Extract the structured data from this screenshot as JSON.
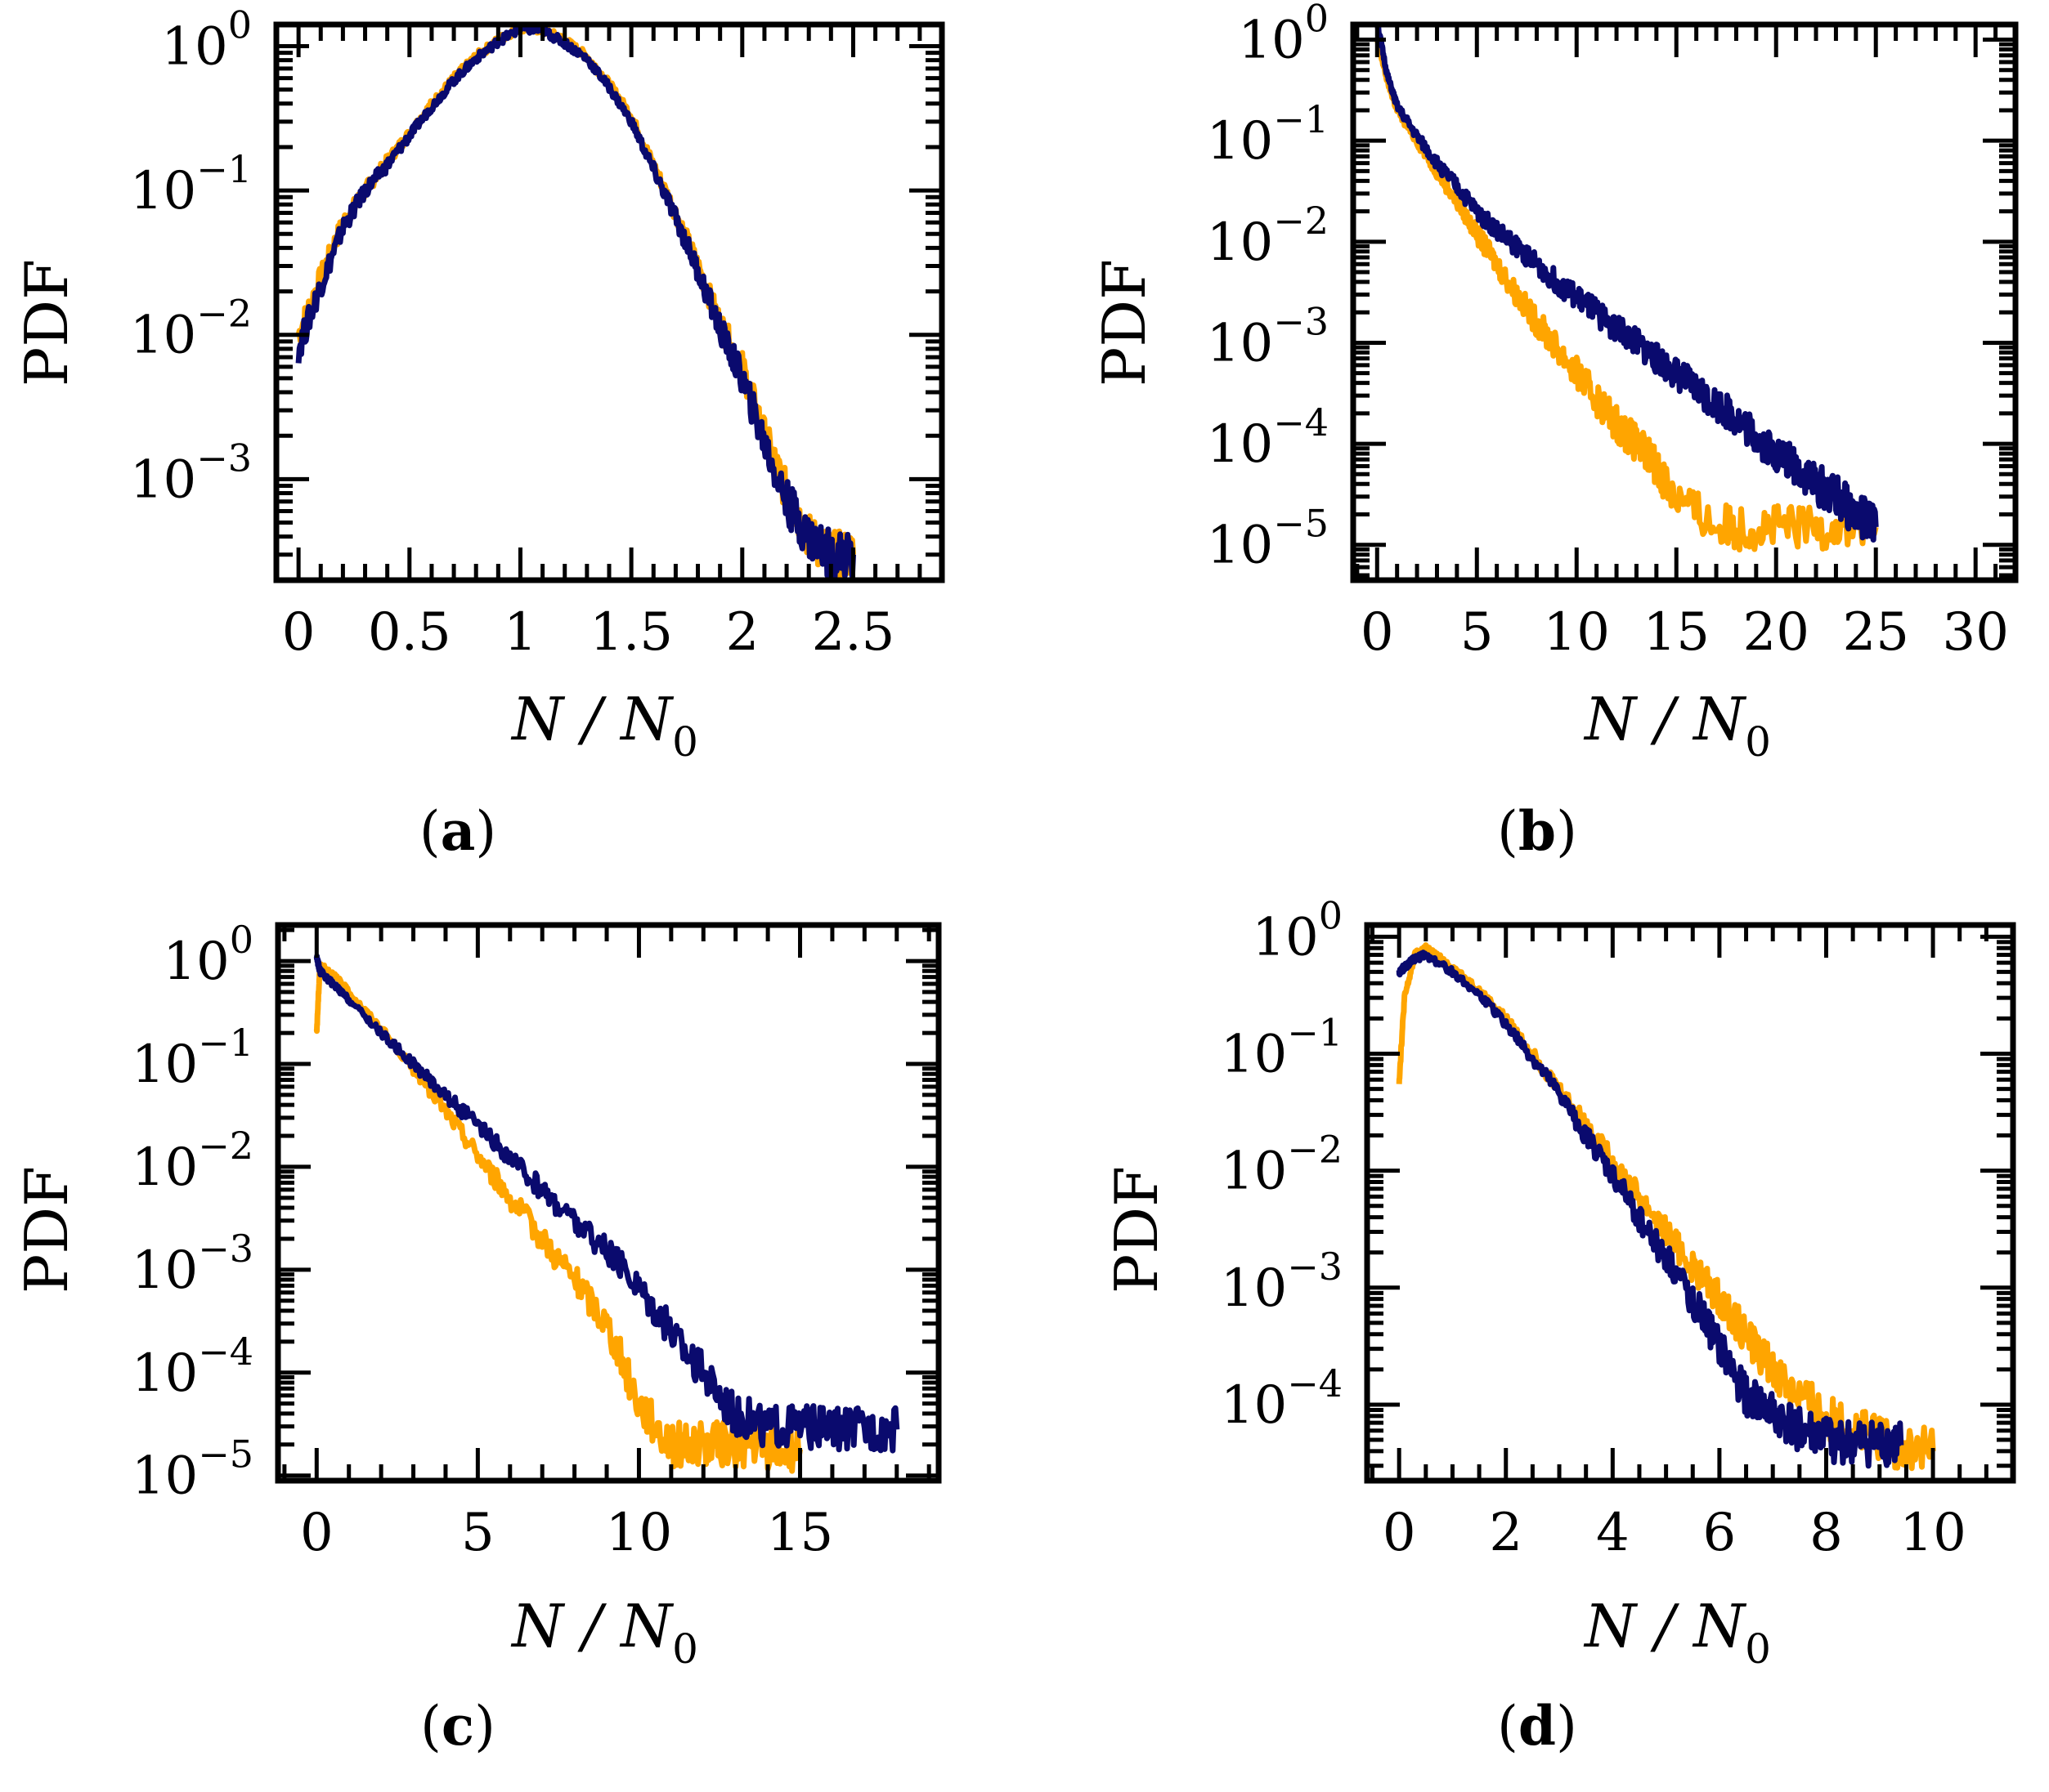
{
  "figure": {
    "series_colors": {
      "orange": "#FFA500",
      "navy": "#0A0A6E"
    }
  },
  "chart_data": [
    {
      "id": "a",
      "type": "line",
      "panel_label": "(a)",
      "panel_letter": "a",
      "ylabel": "PDF",
      "xlabel": "N / N0",
      "xlabel_main": "N / N",
      "xlabel_sub": "0",
      "yscale": "log",
      "xlim": [
        -0.1,
        2.9
      ],
      "ylim_log10": [
        -3.7,
        0.15
      ],
      "x_ticks": [
        0,
        0.5,
        1,
        1.5,
        2,
        2.5
      ],
      "x_tick_labels": [
        "0",
        "0.5",
        "1",
        "1.5",
        "2",
        "2.5"
      ],
      "x_minor_step": 0.1,
      "y_ticks_exp": [
        -3,
        -2,
        -1,
        0
      ],
      "y_tick_labels": [
        {
          "base": "10",
          "exp": "−3"
        },
        {
          "base": "10",
          "exp": "−2"
        },
        {
          "base": "10",
          "exp": "−1"
        },
        {
          "base": "10",
          "exp": "0"
        }
      ],
      "series": [
        {
          "name": "orange",
          "color": "#FFA500",
          "x": [
            0,
            0.1,
            0.2,
            0.3,
            0.4,
            0.5,
            0.6,
            0.7,
            0.8,
            0.9,
            1.0,
            1.1,
            1.2,
            1.3,
            1.4,
            1.5,
            1.6,
            1.7,
            1.8,
            1.9,
            2.0,
            2.1,
            2.2,
            2.3,
            2.4,
            2.5
          ],
          "y": [
            0.01,
            0.025,
            0.06,
            0.1,
            0.16,
            0.25,
            0.4,
            0.6,
            0.85,
            1.1,
            1.35,
            1.3,
            1.1,
            0.85,
            0.55,
            0.33,
            0.15,
            0.07,
            0.03,
            0.012,
            0.006,
            0.002,
            0.0008,
            0.0004,
            0.0003,
            0.0003
          ]
        },
        {
          "name": "navy",
          "color": "#0A0A6E",
          "x": [
            0,
            0.1,
            0.2,
            0.3,
            0.4,
            0.5,
            0.6,
            0.7,
            0.8,
            0.9,
            1.0,
            1.1,
            1.2,
            1.3,
            1.4,
            1.5,
            1.6,
            1.7,
            1.8,
            1.9,
            2.0,
            2.1,
            2.2,
            2.3,
            2.4,
            2.5
          ],
          "y": [
            0.008,
            0.022,
            0.055,
            0.1,
            0.15,
            0.24,
            0.38,
            0.58,
            0.82,
            1.08,
            1.32,
            1.28,
            1.05,
            0.82,
            0.52,
            0.3,
            0.14,
            0.065,
            0.028,
            0.011,
            0.005,
            0.0018,
            0.0007,
            0.0004,
            0.0003,
            0.0003
          ]
        }
      ]
    },
    {
      "id": "b",
      "type": "line",
      "panel_label": "(b)",
      "panel_letter": "b",
      "ylabel": "PDF",
      "xlabel": "N / N0",
      "xlabel_main": "N / N",
      "xlabel_sub": "0",
      "yscale": "log",
      "xlim": [
        -1.2,
        32
      ],
      "ylim_log10": [
        -5.35,
        0.15
      ],
      "x_ticks": [
        0,
        5,
        10,
        15,
        20,
        25,
        30
      ],
      "x_tick_labels": [
        "0",
        "5",
        "10",
        "15",
        "20",
        "25",
        "30"
      ],
      "x_minor_step": 1,
      "y_ticks_exp": [
        -5,
        -4,
        -3,
        -2,
        -1,
        0
      ],
      "y_tick_labels": [
        {
          "base": "10",
          "exp": "−5"
        },
        {
          "base": "10",
          "exp": "−4"
        },
        {
          "base": "10",
          "exp": "−3"
        },
        {
          "base": "10",
          "exp": "−2"
        },
        {
          "base": "10",
          "exp": "−1"
        },
        {
          "base": "10",
          "exp": "0"
        }
      ],
      "series": [
        {
          "name": "orange",
          "color": "#FFA500",
          "x": [
            0,
            0.5,
            1,
            2,
            3,
            4,
            5,
            6,
            7,
            8,
            9,
            10,
            11,
            12,
            13,
            14,
            15,
            17,
            19,
            21,
            23,
            25
          ],
          "y": [
            1.0,
            0.4,
            0.2,
            0.1,
            0.05,
            0.025,
            0.012,
            0.006,
            0.003,
            0.0016,
            0.0009,
            0.0005,
            0.00028,
            0.00016,
            0.0001,
            6e-05,
            3e-05,
            1.5e-05,
            1.5e-05,
            1.5e-05,
            1.5e-05,
            1.5e-05
          ]
        },
        {
          "name": "navy",
          "color": "#0A0A6E",
          "x": [
            0,
            0.5,
            1,
            2,
            3,
            4,
            5,
            6,
            7,
            8,
            9,
            10,
            11,
            12,
            13,
            14,
            15,
            16,
            17,
            18,
            19,
            20,
            21,
            22,
            23,
            24,
            25
          ],
          "y": [
            1.5,
            0.45,
            0.22,
            0.11,
            0.06,
            0.035,
            0.02,
            0.013,
            0.009,
            0.006,
            0.004,
            0.0028,
            0.002,
            0.0014,
            0.001,
            0.0007,
            0.0005,
            0.00035,
            0.00025,
            0.00018,
            0.00012,
            8e-05,
            6e-05,
            4e-05,
            3e-05,
            2e-05,
            1.5e-05
          ]
        }
      ]
    },
    {
      "id": "c",
      "type": "line",
      "panel_label": "(c)",
      "panel_letter": "c",
      "ylabel": "PDF",
      "xlabel": "N / N0",
      "xlabel_main": "N / N",
      "xlabel_sub": "0",
      "yscale": "log",
      "xlim": [
        -1.2,
        19.3
      ],
      "ylim_log10": [
        -5.05,
        0.35
      ],
      "x_ticks": [
        0,
        5,
        10,
        15
      ],
      "x_tick_labels": [
        "0",
        "5",
        "10",
        "15"
      ],
      "x_minor_step": 1,
      "y_ticks_exp": [
        -5,
        -4,
        -3,
        -2,
        -1,
        0
      ],
      "y_tick_labels": [
        {
          "base": "10",
          "exp": "−5"
        },
        {
          "base": "10",
          "exp": "−4"
        },
        {
          "base": "10",
          "exp": "−3"
        },
        {
          "base": "10",
          "exp": "−2"
        },
        {
          "base": "10",
          "exp": "−1"
        },
        {
          "base": "10",
          "exp": "0"
        }
      ],
      "series": [
        {
          "name": "orange",
          "color": "#FFA500",
          "x": [
            0,
            0.1,
            0.5,
            1,
            2,
            3,
            4,
            5,
            6,
            7,
            8,
            9,
            10,
            11,
            12,
            13,
            14,
            15
          ],
          "y": [
            0.2,
            0.9,
            0.75,
            0.5,
            0.22,
            0.09,
            0.035,
            0.013,
            0.005,
            0.002,
            0.0008,
            0.0003,
            5e-05,
            2e-05,
            2e-05,
            2e-05,
            1.8e-05,
            1.8e-05
          ]
        },
        {
          "name": "navy",
          "color": "#0A0A6E",
          "x": [
            0,
            0.1,
            0.5,
            1,
            2,
            3,
            4,
            5,
            6,
            7,
            8,
            9,
            10,
            11,
            12,
            13,
            14,
            15,
            16,
            17,
            18
          ],
          "y": [
            1.1,
            0.8,
            0.6,
            0.42,
            0.2,
            0.1,
            0.05,
            0.025,
            0.012,
            0.006,
            0.003,
            0.0015,
            0.0007,
            0.00025,
            0.0001,
            4e-05,
            3e-05,
            3e-05,
            2.8e-05,
            2.8e-05,
            2.8e-05
          ]
        }
      ]
    },
    {
      "id": "d",
      "type": "line",
      "panel_label": "(d)",
      "panel_letter": "d",
      "ylabel": "PDF",
      "xlabel": "N / N0",
      "xlabel_main": "N / N",
      "xlabel_sub": "0",
      "yscale": "log",
      "xlim": [
        -0.6,
        11.5
      ],
      "ylim_log10": [
        -4.65,
        0.1
      ],
      "x_ticks": [
        0,
        2,
        4,
        6,
        8,
        10
      ],
      "x_tick_labels": [
        "0",
        "2",
        "4",
        "6",
        "8",
        "10"
      ],
      "x_minor_step": 0.5,
      "y_ticks_exp": [
        -4,
        -3,
        -2,
        -1,
        0
      ],
      "y_tick_labels": [
        {
          "base": "10",
          "exp": "−4"
        },
        {
          "base": "10",
          "exp": "−3"
        },
        {
          "base": "10",
          "exp": "−2"
        },
        {
          "base": "10",
          "exp": "−1"
        },
        {
          "base": "10",
          "exp": "0"
        }
      ],
      "series": [
        {
          "name": "orange",
          "color": "#FFA500",
          "x": [
            0,
            0.1,
            0.3,
            0.5,
            1,
            1.5,
            2,
            2.5,
            3,
            3.5,
            4,
            4.5,
            5,
            5.5,
            6,
            6.5,
            7,
            7.5,
            8,
            8.5,
            9,
            9.5,
            10
          ],
          "y": [
            0.06,
            0.3,
            0.7,
            0.8,
            0.55,
            0.35,
            0.2,
            0.1,
            0.05,
            0.025,
            0.012,
            0.006,
            0.003,
            0.0015,
            0.0008,
            0.0004,
            0.0002,
            0.00012,
            8e-05,
            6e-05,
            5e-05,
            4e-05,
            4e-05
          ]
        },
        {
          "name": "navy",
          "color": "#0A0A6E",
          "x": [
            0,
            0.1,
            0.3,
            0.5,
            1,
            1.5,
            2,
            2.5,
            3,
            3.5,
            4,
            4.5,
            5,
            5.5,
            6,
            6.5,
            7,
            7.5,
            8,
            8.5,
            9,
            9.4
          ],
          "y": [
            0.5,
            0.55,
            0.65,
            0.7,
            0.5,
            0.32,
            0.18,
            0.09,
            0.045,
            0.02,
            0.009,
            0.004,
            0.0018,
            0.0008,
            0.0003,
            0.00012,
            8e-05,
            6e-05,
            5e-05,
            4.5e-05,
            4.5e-05,
            4.5e-05
          ]
        }
      ]
    }
  ]
}
